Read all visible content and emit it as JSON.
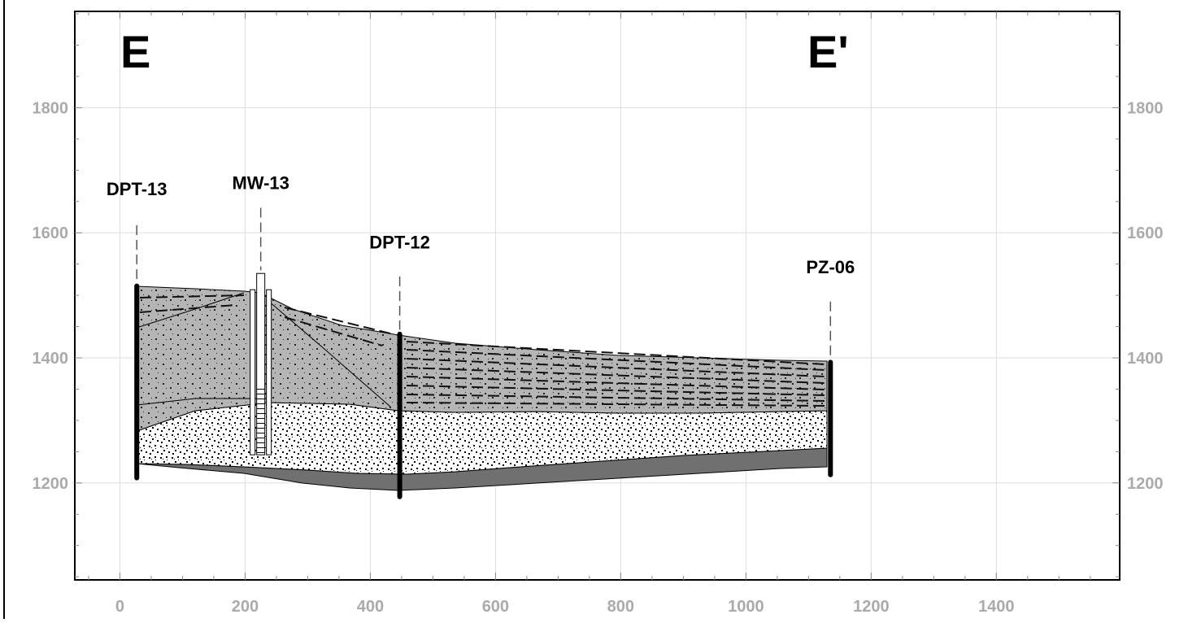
{
  "section": {
    "start_label": "E",
    "end_label": "E'"
  },
  "axes": {
    "x_ticks": [
      0,
      200,
      400,
      600,
      800,
      1000,
      1200,
      1400
    ],
    "y_ticks": [
      1200,
      1400,
      1600,
      1800
    ],
    "x_range": [
      -72,
      1597
    ],
    "y_range": [
      1045,
      1954
    ],
    "grid": true,
    "tick_color": "#aaaaaa"
  },
  "wells": [
    {
      "id": "DPT-13",
      "x": 27,
      "top": 1515,
      "bottom": 1208,
      "label_elev": 1660,
      "leader_top": 1612,
      "leader_bottom": 1522
    },
    {
      "id": "MW-13",
      "x": 225,
      "top": 1535,
      "bottom": 1245,
      "label_elev": 1670,
      "leader_top": 1640,
      "leader_bottom": 1540,
      "screen_top": 1350,
      "screen_bottom": 1245
    },
    {
      "id": "DPT-12",
      "x": 447,
      "top": 1438,
      "bottom": 1178,
      "label_elev": 1575,
      "leader_top": 1530,
      "leader_bottom": 1445
    },
    {
      "id": "PZ-06",
      "x": 1135,
      "top": 1393,
      "bottom": 1213,
      "label_elev": 1535,
      "leader_top": 1490,
      "leader_bottom": 1400
    }
  ],
  "colors": {
    "clay": "#b5b5b5",
    "sand": "#ffffff",
    "bedrock": "#707070",
    "grid": "#dddddd",
    "axis_text": "#aaaaaa"
  }
}
